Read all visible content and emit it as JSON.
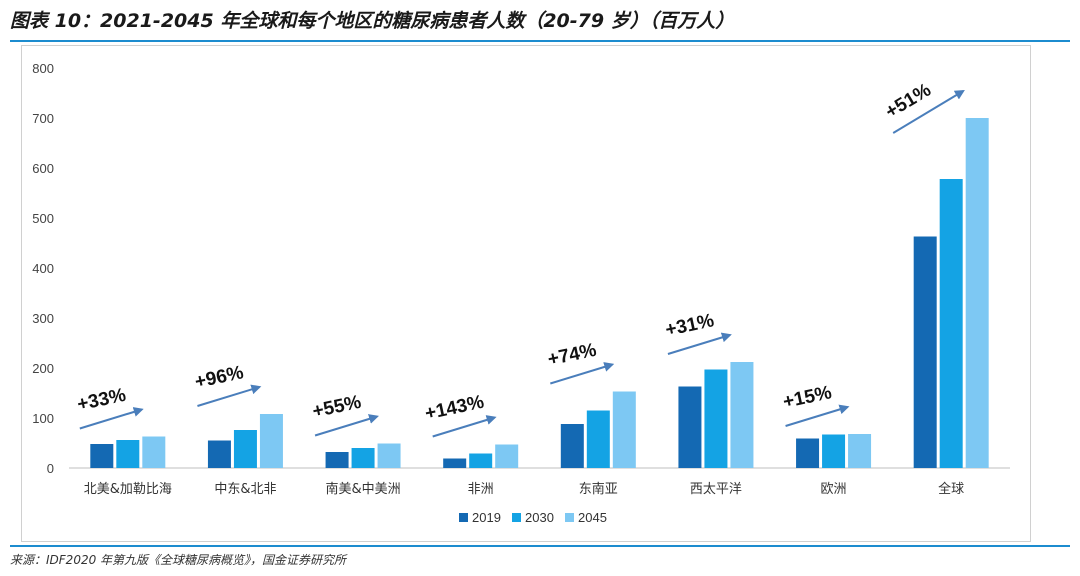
{
  "header": {
    "title": "图表 10：2021-2045 年全球和每个地区的糖尿病患者人数（20-79 岁）（百万人）"
  },
  "footer": {
    "source": "来源：IDF2020 年第九版《全球糖尿病概览》，国金证券研究所"
  },
  "chart_data": {
    "type": "bar",
    "title": "",
    "xlabel": "",
    "ylabel": "",
    "ylim": [
      0,
      800
    ],
    "yticks": [
      0,
      100,
      200,
      300,
      400,
      500,
      600,
      700,
      800
    ],
    "grid": false,
    "legend_position": "bottom-center",
    "categories": [
      "北美&加勒比海",
      "中东&北非",
      "南美&中美洲",
      "非洲",
      "东南亚",
      "西太平洋",
      "欧洲",
      "全球"
    ],
    "series": [
      {
        "name": "2019",
        "color": "#1469b3",
        "values": [
          48,
          55,
          32,
          19,
          88,
          163,
          59,
          463
        ]
      },
      {
        "name": "2030",
        "color": "#14a3e4",
        "values": [
          56,
          76,
          40,
          29,
          115,
          197,
          67,
          578
        ]
      },
      {
        "name": "2045",
        "color": "#7dc8f3",
        "values": [
          63,
          108,
          49,
          47,
          153,
          212,
          68,
          700
        ]
      }
    ],
    "annotations": [
      {
        "category": "北美&加勒比海",
        "text": "+33%"
      },
      {
        "category": "中东&北非",
        "text": "+96%"
      },
      {
        "category": "南美&中美洲",
        "text": "+55%"
      },
      {
        "category": "非洲",
        "text": "+143%"
      },
      {
        "category": "东南亚",
        "text": "+74%"
      },
      {
        "category": "西太平洋",
        "text": "+31%"
      },
      {
        "category": "欧洲",
        "text": "+15%"
      },
      {
        "category": "全球",
        "text": "+51%"
      }
    ],
    "arrow_color": "#4a7ebb"
  }
}
